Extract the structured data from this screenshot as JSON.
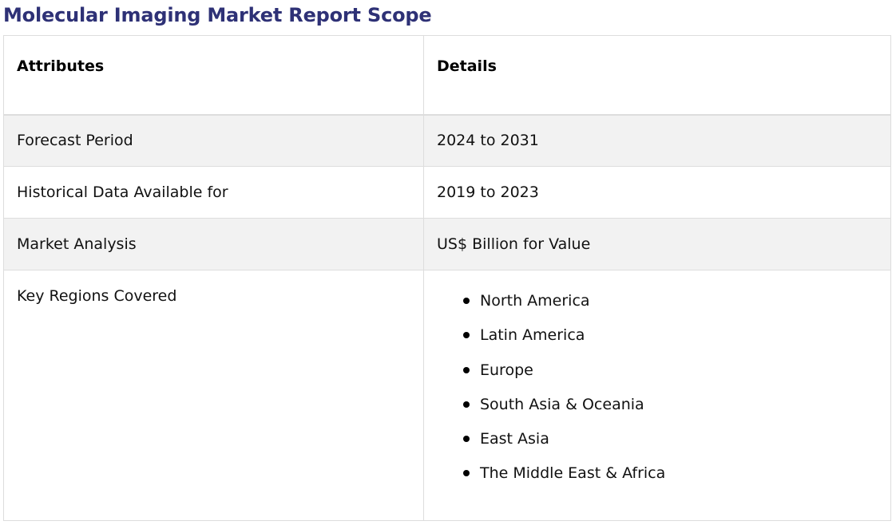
{
  "page": {
    "title": "Molecular Imaging Market Report Scope",
    "title_color": "#2e3176"
  },
  "table": {
    "headers": {
      "attributes": "Attributes",
      "details": "Details"
    },
    "rows": [
      {
        "attribute": "Forecast Period",
        "detail": "2024 to 2031"
      },
      {
        "attribute": "Historical Data Available for",
        "detail": "2019 to 2023"
      },
      {
        "attribute": "Market Analysis",
        "detail": "US$ Billion for Value"
      },
      {
        "attribute": "Key Regions Covered",
        "regions": [
          "North America",
          "Latin America",
          "Europe",
          "South Asia & Oceania",
          "East Asia",
          "The Middle East & Africa"
        ]
      }
    ],
    "shade_color": "#f2f2f2",
    "border_color": "#dddddd"
  }
}
